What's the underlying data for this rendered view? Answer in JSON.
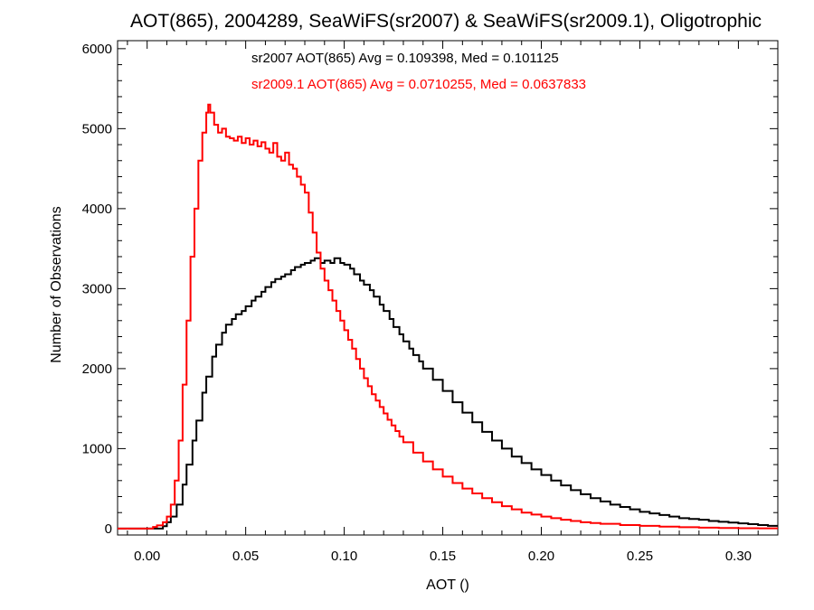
{
  "chart_data": {
    "type": "line",
    "title": "AOT(865), 2004289, SeaWiFS(sr2007) & SeaWiFS(sr2009.1), Oligotrophic",
    "xlabel": "AOT ()",
    "ylabel": "Number of Observations",
    "xlim": [
      -0.015,
      0.32
    ],
    "ylim": [
      -80,
      6100
    ],
    "x_ticks": [
      0.0,
      0.05,
      0.1,
      0.15,
      0.2,
      0.25,
      0.3
    ],
    "x_tick_labels": [
      "0.00",
      "0.05",
      "0.10",
      "0.15",
      "0.20",
      "0.25",
      "0.30"
    ],
    "y_ticks": [
      0,
      1000,
      2000,
      3000,
      4000,
      5000,
      6000
    ],
    "y_tick_labels": [
      "0",
      "1000",
      "2000",
      "3000",
      "4000",
      "5000",
      "6000"
    ],
    "grid": false,
    "annotations": [
      {
        "text": "sr2007 AOT(865) Avg = 0.109398, Med = 0.101125",
        "color": "#000000"
      },
      {
        "text": "sr2009.1 AOT(865) Avg = 0.0710255, Med = 0.0637833",
        "color": "#ff0000"
      }
    ],
    "series": [
      {
        "color": "#000000",
        "points": [
          [
            -0.015,
            0
          ],
          [
            0.005,
            0
          ],
          [
            0.008,
            30
          ],
          [
            0.01,
            80
          ],
          [
            0.012,
            150
          ],
          [
            0.015,
            300
          ],
          [
            0.018,
            550
          ],
          [
            0.02,
            800
          ],
          [
            0.023,
            1100
          ],
          [
            0.025,
            1350
          ],
          [
            0.028,
            1700
          ],
          [
            0.03,
            1900
          ],
          [
            0.033,
            2150
          ],
          [
            0.035,
            2300
          ],
          [
            0.038,
            2450
          ],
          [
            0.04,
            2550
          ],
          [
            0.043,
            2620
          ],
          [
            0.045,
            2680
          ],
          [
            0.048,
            2720
          ],
          [
            0.05,
            2780
          ],
          [
            0.053,
            2850
          ],
          [
            0.055,
            2900
          ],
          [
            0.058,
            2960
          ],
          [
            0.06,
            3020
          ],
          [
            0.063,
            3080
          ],
          [
            0.065,
            3120
          ],
          [
            0.068,
            3150
          ],
          [
            0.07,
            3180
          ],
          [
            0.073,
            3230
          ],
          [
            0.075,
            3270
          ],
          [
            0.078,
            3300
          ],
          [
            0.08,
            3320
          ],
          [
            0.083,
            3350
          ],
          [
            0.085,
            3380
          ],
          [
            0.088,
            3320
          ],
          [
            0.09,
            3350
          ],
          [
            0.093,
            3320
          ],
          [
            0.095,
            3380
          ],
          [
            0.098,
            3320
          ],
          [
            0.1,
            3300
          ],
          [
            0.103,
            3250
          ],
          [
            0.105,
            3180
          ],
          [
            0.108,
            3100
          ],
          [
            0.11,
            3050
          ],
          [
            0.113,
            2980
          ],
          [
            0.115,
            2900
          ],
          [
            0.118,
            2800
          ],
          [
            0.12,
            2720
          ],
          [
            0.123,
            2620
          ],
          [
            0.125,
            2520
          ],
          [
            0.128,
            2430
          ],
          [
            0.13,
            2340
          ],
          [
            0.133,
            2250
          ],
          [
            0.135,
            2170
          ],
          [
            0.138,
            2090
          ],
          [
            0.14,
            2000
          ],
          [
            0.145,
            1860
          ],
          [
            0.15,
            1720
          ],
          [
            0.155,
            1580
          ],
          [
            0.16,
            1450
          ],
          [
            0.165,
            1330
          ],
          [
            0.17,
            1210
          ],
          [
            0.175,
            1100
          ],
          [
            0.18,
            1000
          ],
          [
            0.185,
            900
          ],
          [
            0.19,
            820
          ],
          [
            0.195,
            740
          ],
          [
            0.2,
            670
          ],
          [
            0.205,
            600
          ],
          [
            0.21,
            540
          ],
          [
            0.215,
            480
          ],
          [
            0.22,
            430
          ],
          [
            0.225,
            380
          ],
          [
            0.23,
            340
          ],
          [
            0.235,
            300
          ],
          [
            0.24,
            270
          ],
          [
            0.245,
            240
          ],
          [
            0.25,
            210
          ],
          [
            0.255,
            190
          ],
          [
            0.26,
            170
          ],
          [
            0.265,
            150
          ],
          [
            0.27,
            130
          ],
          [
            0.275,
            120
          ],
          [
            0.28,
            110
          ],
          [
            0.285,
            95
          ],
          [
            0.29,
            85
          ],
          [
            0.295,
            75
          ],
          [
            0.3,
            65
          ],
          [
            0.305,
            55
          ],
          [
            0.31,
            45
          ],
          [
            0.315,
            35
          ],
          [
            0.32,
            30
          ]
        ]
      },
      {
        "color": "#ff0000",
        "points": [
          [
            -0.015,
            0
          ],
          [
            0.0,
            0
          ],
          [
            0.003,
            20
          ],
          [
            0.005,
            40
          ],
          [
            0.008,
            80
          ],
          [
            0.01,
            150
          ],
          [
            0.012,
            300
          ],
          [
            0.014,
            600
          ],
          [
            0.016,
            1100
          ],
          [
            0.018,
            1800
          ],
          [
            0.02,
            2600
          ],
          [
            0.022,
            3400
          ],
          [
            0.024,
            4000
          ],
          [
            0.026,
            4600
          ],
          [
            0.028,
            4950
          ],
          [
            0.03,
            5200
          ],
          [
            0.031,
            5300
          ],
          [
            0.032,
            5200
          ],
          [
            0.034,
            5050
          ],
          [
            0.036,
            4950
          ],
          [
            0.038,
            5000
          ],
          [
            0.04,
            4900
          ],
          [
            0.042,
            4880
          ],
          [
            0.044,
            4850
          ],
          [
            0.046,
            4900
          ],
          [
            0.048,
            4820
          ],
          [
            0.05,
            4880
          ],
          [
            0.052,
            4800
          ],
          [
            0.054,
            4850
          ],
          [
            0.056,
            4780
          ],
          [
            0.058,
            4830
          ],
          [
            0.06,
            4750
          ],
          [
            0.062,
            4700
          ],
          [
            0.064,
            4820
          ],
          [
            0.066,
            4650
          ],
          [
            0.068,
            4600
          ],
          [
            0.07,
            4700
          ],
          [
            0.072,
            4550
          ],
          [
            0.074,
            4500
          ],
          [
            0.076,
            4400
          ],
          [
            0.078,
            4300
          ],
          [
            0.08,
            4200
          ],
          [
            0.082,
            3950
          ],
          [
            0.084,
            3700
          ],
          [
            0.086,
            3450
          ],
          [
            0.088,
            3250
          ],
          [
            0.09,
            3100
          ],
          [
            0.092,
            2980
          ],
          [
            0.094,
            2850
          ],
          [
            0.096,
            2720
          ],
          [
            0.098,
            2600
          ],
          [
            0.1,
            2480
          ],
          [
            0.102,
            2360
          ],
          [
            0.104,
            2250
          ],
          [
            0.106,
            2120
          ],
          [
            0.108,
            2000
          ],
          [
            0.11,
            1880
          ],
          [
            0.112,
            1780
          ],
          [
            0.114,
            1680
          ],
          [
            0.116,
            1600
          ],
          [
            0.118,
            1520
          ],
          [
            0.12,
            1440
          ],
          [
            0.122,
            1360
          ],
          [
            0.124,
            1290
          ],
          [
            0.126,
            1220
          ],
          [
            0.128,
            1150
          ],
          [
            0.13,
            1080
          ],
          [
            0.135,
            950
          ],
          [
            0.14,
            840
          ],
          [
            0.145,
            740
          ],
          [
            0.15,
            650
          ],
          [
            0.155,
            570
          ],
          [
            0.16,
            500
          ],
          [
            0.165,
            440
          ],
          [
            0.17,
            380
          ],
          [
            0.175,
            330
          ],
          [
            0.18,
            280
          ],
          [
            0.185,
            240
          ],
          [
            0.19,
            200
          ],
          [
            0.195,
            175
          ],
          [
            0.2,
            150
          ],
          [
            0.205,
            130
          ],
          [
            0.21,
            110
          ],
          [
            0.215,
            95
          ],
          [
            0.22,
            80
          ],
          [
            0.225,
            70
          ],
          [
            0.23,
            60
          ],
          [
            0.24,
            45
          ],
          [
            0.25,
            35
          ],
          [
            0.26,
            25
          ],
          [
            0.27,
            18
          ],
          [
            0.28,
            12
          ],
          [
            0.29,
            8
          ],
          [
            0.3,
            5
          ],
          [
            0.31,
            3
          ],
          [
            0.32,
            2
          ]
        ]
      }
    ]
  }
}
